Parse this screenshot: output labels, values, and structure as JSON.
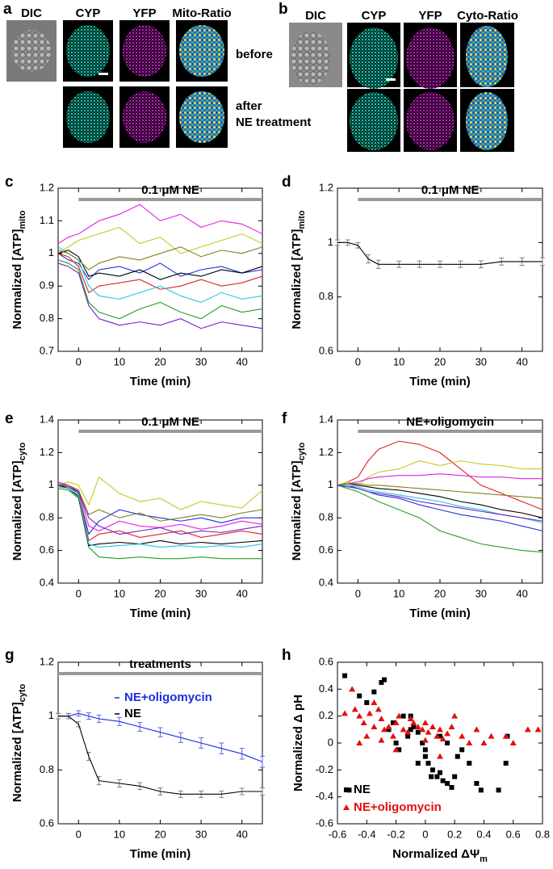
{
  "panel_a": {
    "letter": "a",
    "headers": [
      "DIC",
      "CYP",
      "YFP",
      "Mito-Ratio"
    ],
    "before_label": "before",
    "after_label": [
      "after",
      "NE treatment"
    ]
  },
  "panel_b": {
    "letter": "b",
    "headers": [
      "DIC",
      "CYP",
      "YFP",
      "Cyto-Ratio"
    ]
  },
  "chart_data": [
    {
      "type": "line",
      "panel": "c",
      "xlabel": "Time (min)",
      "ylabel": "Normalized [ATP]",
      "ylabel_sub": "mito",
      "annotation": {
        "text": "0.1 μM NE",
        "start": 0,
        "end": 45
      },
      "x": [
        -5,
        -2.5,
        0,
        2.5,
        5,
        10,
        15,
        20,
        25,
        30,
        35,
        40,
        45
      ],
      "xlim": [
        -5,
        45
      ],
      "xticks": [
        0,
        10,
        20,
        30,
        40
      ],
      "ylim": [
        0.7,
        1.2
      ],
      "yticks": [
        0.7,
        0.8,
        0.9,
        1,
        1.1,
        1.2
      ],
      "series": [
        {
          "color": "#e020e0",
          "values": [
            1.03,
            1.05,
            1.06,
            1.08,
            1.1,
            1.12,
            1.15,
            1.1,
            1.12,
            1.08,
            1.1,
            1.09,
            1.06
          ]
        },
        {
          "color": "#c8c820",
          "values": [
            1.0,
            1.02,
            1.04,
            1.05,
            1.06,
            1.08,
            1.03,
            1.05,
            1.0,
            1.02,
            1.04,
            1.06,
            1.03
          ]
        },
        {
          "color": "#2030e0",
          "values": [
            1.0,
            0.98,
            0.97,
            0.92,
            0.95,
            0.96,
            0.94,
            0.97,
            0.93,
            0.95,
            0.96,
            0.94,
            0.95
          ]
        },
        {
          "color": "#e02020",
          "values": [
            1.0,
            0.99,
            0.96,
            0.88,
            0.9,
            0.91,
            0.92,
            0.89,
            0.9,
            0.92,
            0.9,
            0.91,
            0.93
          ]
        },
        {
          "color": "#20a020",
          "values": [
            0.98,
            0.97,
            0.95,
            0.85,
            0.82,
            0.8,
            0.83,
            0.85,
            0.82,
            0.8,
            0.84,
            0.82,
            0.83
          ]
        },
        {
          "color": "#20c8e0",
          "values": [
            1.02,
            1.0,
            0.98,
            0.9,
            0.87,
            0.86,
            0.88,
            0.9,
            0.87,
            0.85,
            0.88,
            0.86,
            0.87
          ]
        },
        {
          "color": "#000000",
          "values": [
            1.0,
            1.01,
            0.99,
            0.93,
            0.94,
            0.93,
            0.95,
            0.92,
            0.94,
            0.93,
            0.95,
            0.94,
            0.96
          ]
        },
        {
          "color": "#7020c0",
          "values": [
            0.97,
            0.96,
            0.94,
            0.84,
            0.8,
            0.78,
            0.79,
            0.78,
            0.8,
            0.77,
            0.79,
            0.78,
            0.77
          ]
        },
        {
          "color": "#808020",
          "values": [
            1.01,
            1.0,
            0.98,
            0.95,
            0.97,
            0.99,
            0.98,
            1.0,
            1.02,
            0.99,
            1.01,
            1.0,
            1.02
          ]
        }
      ]
    },
    {
      "type": "line",
      "panel": "d",
      "xlabel": "Time (min)",
      "ylabel": "Normalized [ATP]",
      "ylabel_sub": "mito",
      "annotation": {
        "text": "0.1 μM NE",
        "start": 0,
        "end": 45
      },
      "x": [
        -5,
        -2.5,
        0,
        2.5,
        5,
        10,
        15,
        20,
        25,
        30,
        35,
        40,
        45
      ],
      "xlim": [
        -5,
        45
      ],
      "xticks": [
        0,
        10,
        20,
        30,
        40
      ],
      "ylim": [
        0.6,
        1.2
      ],
      "yticks": [
        0.6,
        0.8,
        1,
        1.2
      ],
      "series": [
        {
          "color": "#000000",
          "errorcolor": "#808080",
          "values": [
            1.0,
            1.0,
            0.99,
            0.94,
            0.92,
            0.92,
            0.92,
            0.92,
            0.92,
            0.92,
            0.93,
            0.93,
            0.93
          ],
          "errors": [
            0.01,
            0.01,
            0.01,
            0.015,
            0.015,
            0.012,
            0.012,
            0.012,
            0.012,
            0.013,
            0.013,
            0.014,
            0.014
          ]
        }
      ]
    },
    {
      "type": "line",
      "panel": "e",
      "xlabel": "Time (min)",
      "ylabel": "Normalized [ATP]",
      "ylabel_sub": "cyto",
      "annotation": {
        "text": "0.1 μM NE",
        "start": 0,
        "end": 45
      },
      "x": [
        -5,
        -2.5,
        0,
        2.5,
        5,
        10,
        15,
        20,
        25,
        30,
        35,
        40,
        45
      ],
      "xlim": [
        -5,
        45
      ],
      "xticks": [
        0,
        10,
        20,
        30,
        40
      ],
      "ylim": [
        0.4,
        1.4
      ],
      "yticks": [
        0.4,
        0.6,
        0.8,
        1,
        1.2,
        1.4
      ],
      "series": [
        {
          "color": "#c8c820",
          "values": [
            1.0,
            1.02,
            1.0,
            0.88,
            1.05,
            0.95,
            0.9,
            0.92,
            0.85,
            0.9,
            0.88,
            0.86,
            0.97
          ]
        },
        {
          "color": "#20a020",
          "values": [
            0.98,
            0.97,
            0.92,
            0.62,
            0.56,
            0.55,
            0.56,
            0.55,
            0.55,
            0.56,
            0.55,
            0.55,
            0.55
          ]
        },
        {
          "color": "#2030e0",
          "values": [
            1.0,
            0.99,
            0.95,
            0.7,
            0.78,
            0.85,
            0.82,
            0.8,
            0.78,
            0.8,
            0.77,
            0.8,
            0.8
          ]
        },
        {
          "color": "#e02020",
          "values": [
            1.0,
            1.0,
            0.96,
            0.66,
            0.7,
            0.72,
            0.68,
            0.7,
            0.72,
            0.68,
            0.7,
            0.72,
            0.7
          ]
        },
        {
          "color": "#000000",
          "values": [
            1.0,
            0.98,
            0.93,
            0.63,
            0.64,
            0.65,
            0.64,
            0.66,
            0.64,
            0.65,
            0.64,
            0.65,
            0.66
          ]
        },
        {
          "color": "#e020e0",
          "values": [
            1.02,
            1.0,
            0.97,
            0.75,
            0.72,
            0.78,
            0.75,
            0.74,
            0.76,
            0.73,
            0.75,
            0.78,
            0.76
          ]
        },
        {
          "color": "#20c8e0",
          "values": [
            0.99,
            0.98,
            0.94,
            0.64,
            0.62,
            0.63,
            0.64,
            0.62,
            0.63,
            0.62,
            0.63,
            0.62,
            0.64
          ]
        },
        {
          "color": "#7020c0",
          "values": [
            1.0,
            0.99,
            0.96,
            0.8,
            0.75,
            0.7,
            0.72,
            0.74,
            0.7,
            0.72,
            0.71,
            0.73,
            0.75
          ]
        },
        {
          "color": "#808020",
          "values": [
            1.01,
            1.0,
            0.97,
            0.82,
            0.85,
            0.8,
            0.83,
            0.78,
            0.8,
            0.82,
            0.8,
            0.83,
            0.85
          ]
        }
      ]
    },
    {
      "type": "line",
      "panel": "f",
      "xlabel": "Time (min)",
      "ylabel": "Normalized [ATP]",
      "ylabel_sub": "cyto",
      "annotation": {
        "text": "NE+oligomycin",
        "start": 0,
        "end": 45
      },
      "x": [
        -5,
        -2.5,
        0,
        2.5,
        5,
        10,
        15,
        20,
        25,
        30,
        35,
        40,
        45
      ],
      "xlim": [
        -5,
        45
      ],
      "xticks": [
        0,
        10,
        20,
        30,
        40
      ],
      "ylim": [
        0.4,
        1.4
      ],
      "yticks": [
        0.4,
        0.6,
        0.8,
        1,
        1.2,
        1.4
      ],
      "series": [
        {
          "color": "#e02020",
          "values": [
            1.0,
            1.02,
            1.05,
            1.15,
            1.22,
            1.27,
            1.25,
            1.2,
            1.1,
            1.0,
            0.95,
            0.9,
            0.85
          ]
        },
        {
          "color": "#c8c820",
          "values": [
            1.0,
            1.02,
            1.0,
            1.05,
            1.08,
            1.1,
            1.15,
            1.12,
            1.15,
            1.13,
            1.12,
            1.1,
            1.1
          ]
        },
        {
          "color": "#e020e0",
          "values": [
            1.0,
            1.01,
            1.02,
            1.04,
            1.05,
            1.06,
            1.06,
            1.07,
            1.06,
            1.05,
            1.05,
            1.04,
            1.04
          ]
        },
        {
          "color": "#20a020",
          "values": [
            1.0,
            0.98,
            0.96,
            0.93,
            0.9,
            0.85,
            0.8,
            0.72,
            0.68,
            0.64,
            0.62,
            0.6,
            0.59
          ]
        },
        {
          "color": "#2030e0",
          "values": [
            1.0,
            1.0,
            0.98,
            0.96,
            0.94,
            0.92,
            0.88,
            0.85,
            0.82,
            0.8,
            0.78,
            0.75,
            0.72
          ]
        },
        {
          "color": "#000000",
          "values": [
            1.0,
            1.01,
            1.0,
            0.99,
            0.98,
            0.97,
            0.95,
            0.93,
            0.9,
            0.88,
            0.85,
            0.83,
            0.8
          ]
        },
        {
          "color": "#20c8e0",
          "values": [
            1.0,
            1.0,
            0.99,
            0.97,
            0.96,
            0.94,
            0.92,
            0.9,
            0.87,
            0.85,
            0.82,
            0.8,
            0.77
          ]
        },
        {
          "color": "#808020",
          "values": [
            1.0,
            1.01,
            1.01,
            1.0,
            1.0,
            0.99,
            0.98,
            0.97,
            0.96,
            0.95,
            0.94,
            0.93,
            0.92
          ]
        },
        {
          "color": "#7020c0",
          "values": [
            1.0,
            0.99,
            0.98,
            0.96,
            0.95,
            0.93,
            0.9,
            0.88,
            0.86,
            0.84,
            0.82,
            0.8,
            0.78
          ]
        }
      ]
    },
    {
      "type": "line",
      "panel": "g",
      "xlabel": "Time (min)",
      "ylabel": "Normalized [ATP]",
      "ylabel_sub": "cyto",
      "annotation": {
        "text": "treatments",
        "start": -5,
        "end": 45
      },
      "x": [
        -5,
        -2.5,
        0,
        2.5,
        5,
        10,
        15,
        20,
        25,
        30,
        35,
        40,
        45
      ],
      "xlim": [
        -5,
        45
      ],
      "xticks": [
        0,
        10,
        20,
        30,
        40
      ],
      "ylim": [
        0.6,
        1.2
      ],
      "yticks": [
        0.6,
        0.8,
        1,
        1.2
      ],
      "legend": "upper right",
      "series": [
        {
          "name": "NE+oligomycin",
          "color": "#1a2ee0",
          "errorcolor": "#5a6ae8",
          "values": [
            1.0,
            1.0,
            1.01,
            1.0,
            0.99,
            0.98,
            0.96,
            0.94,
            0.92,
            0.9,
            0.88,
            0.86,
            0.83
          ],
          "errors": [
            0.01,
            0.01,
            0.01,
            0.012,
            0.014,
            0.015,
            0.016,
            0.017,
            0.018,
            0.019,
            0.02,
            0.02,
            0.02
          ]
        },
        {
          "name": "NE",
          "color": "#000000",
          "errorcolor": "#808080",
          "values": [
            1.0,
            1.0,
            0.97,
            0.85,
            0.76,
            0.75,
            0.74,
            0.72,
            0.71,
            0.71,
            0.71,
            0.72,
            0.72
          ],
          "errors": [
            0.01,
            0.01,
            0.01,
            0.015,
            0.015,
            0.014,
            0.013,
            0.013,
            0.012,
            0.012,
            0.012,
            0.012,
            0.013
          ]
        }
      ]
    },
    {
      "type": "scatter",
      "panel": "h",
      "xlabel": "Normalized ΔΨ",
      "xlabel_sub": "m",
      "ylabel": "Normalized Δ pH",
      "xlim": [
        -0.6,
        0.8
      ],
      "xticks": [
        -0.6,
        -0.4,
        -0.2,
        0,
        0.2,
        0.4,
        0.6,
        0.8
      ],
      "ylim": [
        -0.6,
        0.6
      ],
      "yticks": [
        -0.6,
        -0.4,
        -0.2,
        0,
        0.2,
        0.4,
        0.6
      ],
      "legend": "lower left",
      "series": [
        {
          "name": "NE",
          "color": "#000000",
          "marker": "square",
          "x": [
            -0.55,
            -0.52,
            -0.45,
            -0.4,
            -0.35,
            -0.3,
            -0.28,
            -0.25,
            -0.22,
            -0.2,
            -0.18,
            -0.15,
            -0.12,
            -0.1,
            -0.08,
            -0.05,
            -0.02,
            0.0,
            0.02,
            0.05,
            0.08,
            0.1,
            0.12,
            0.15,
            0.18,
            0.2,
            0.22,
            0.25,
            0.3,
            0.35,
            0.38,
            0.5,
            0.55,
            0.56,
            -0.05,
            0.0,
            0.04,
            -0.1,
            0.15,
            0.1
          ],
          "y": [
            0.5,
            -0.35,
            0.35,
            0.3,
            0.38,
            0.45,
            0.47,
            0.1,
            0.15,
            0.0,
            -0.05,
            0.2,
            0.05,
            0.1,
            0.12,
            0.08,
            0.0,
            -0.05,
            -0.15,
            -0.2,
            -0.25,
            -0.22,
            -0.28,
            -0.3,
            -0.33,
            -0.25,
            -0.1,
            -0.05,
            -0.15,
            -0.3,
            -0.35,
            -0.35,
            -0.15,
            0.05,
            -0.15,
            -0.1,
            -0.25,
            0.2,
            0.0,
            0.05
          ]
        },
        {
          "name": "NE+oligomycin",
          "color": "#e01010",
          "marker": "triangle",
          "x": [
            -0.55,
            -0.5,
            -0.48,
            -0.45,
            -0.42,
            -0.4,
            -0.38,
            -0.35,
            -0.32,
            -0.3,
            -0.28,
            -0.25,
            -0.22,
            -0.2,
            -0.18,
            -0.15,
            -0.12,
            -0.1,
            -0.08,
            -0.05,
            -0.02,
            0.0,
            0.02,
            0.05,
            0.08,
            0.1,
            0.12,
            0.15,
            0.18,
            0.2,
            0.25,
            0.3,
            0.35,
            0.4,
            0.45,
            0.55,
            0.6,
            0.7,
            0.77,
            -0.3,
            -0.2,
            0.0,
            0.1,
            -0.45,
            -0.35
          ],
          "y": [
            0.22,
            0.4,
            0.25,
            0.2,
            0.15,
            0.05,
            0.22,
            0.3,
            0.25,
            0.18,
            0.1,
            0.12,
            0.05,
            0.15,
            0.2,
            0.1,
            0.08,
            0.18,
            0.15,
            0.12,
            0.1,
            0.15,
            0.08,
            0.12,
            0.05,
            0.1,
            0.03,
            0.07,
            0.12,
            0.2,
            0.05,
            0.0,
            0.1,
            0.0,
            0.05,
            0.05,
            0.0,
            0.1,
            0.1,
            0.02,
            -0.05,
            0.02,
            -0.1,
            0.0,
            0.12
          ]
        }
      ]
    }
  ]
}
